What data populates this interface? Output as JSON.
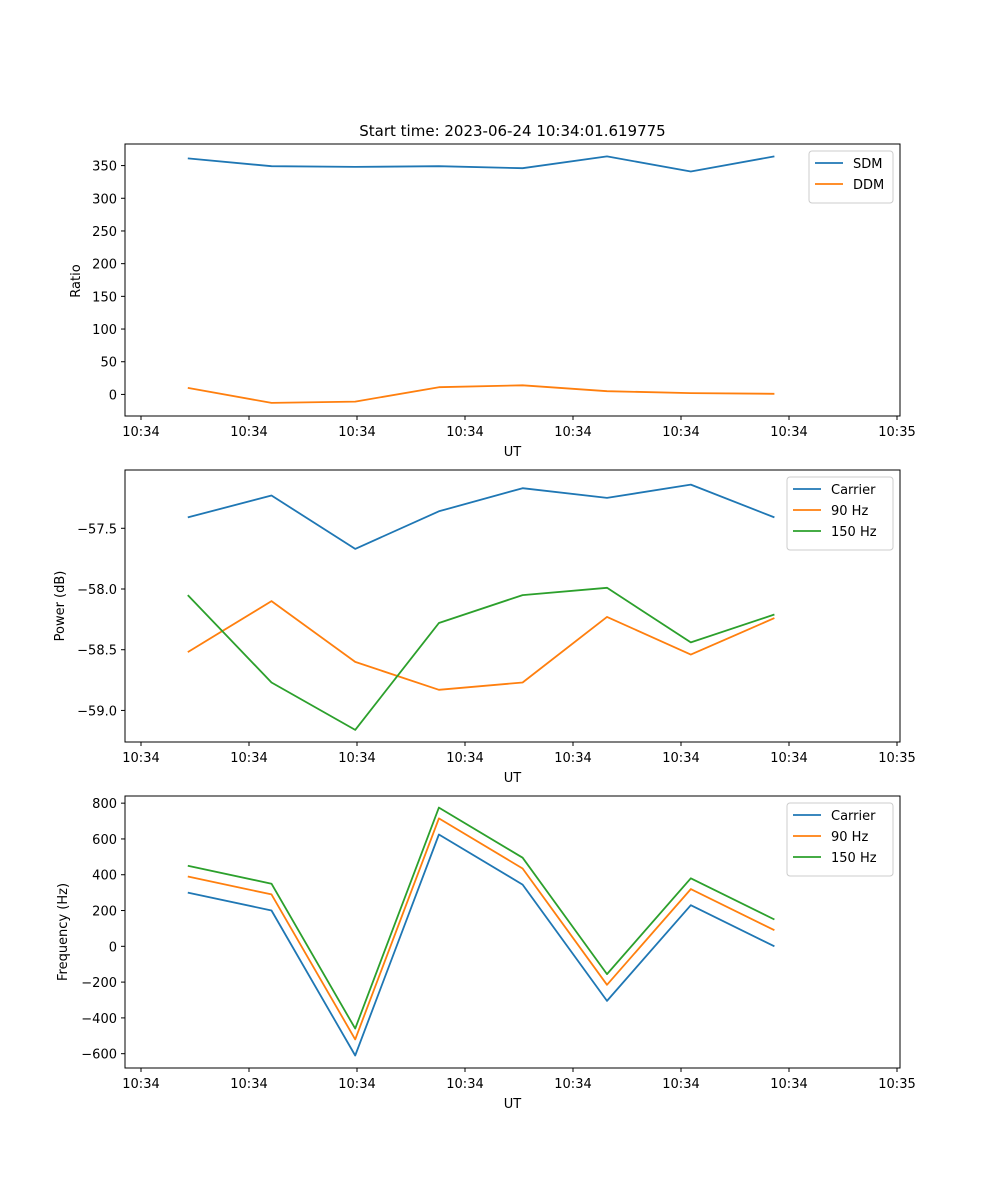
{
  "chart_data": [
    {
      "type": "line",
      "title": "Start time: 2023-06-24 10:34:01.619775",
      "xlabel": "UT",
      "ylabel": "Ratio",
      "x_tick_labels": [
        "10:34",
        "10:34",
        "10:34",
        "10:34",
        "10:34",
        "10:34",
        "10:34",
        "10:35"
      ],
      "y_ticks": [
        0,
        50,
        100,
        150,
        200,
        250,
        300,
        350
      ],
      "ylim": [
        -33,
        383
      ],
      "x_domain": [
        0,
        1
      ],
      "x": [
        0.081,
        0.189,
        0.297,
        0.405,
        0.513,
        0.622,
        0.73,
        0.838
      ],
      "series": [
        {
          "name": "SDM",
          "color": "#1f77b4",
          "values": [
            361,
            349,
            348,
            349,
            346,
            364,
            341,
            364
          ]
        },
        {
          "name": "DDM",
          "color": "#ff7f0e",
          "values": [
            10,
            -13,
            -11,
            11,
            14,
            5,
            2,
            1
          ]
        }
      ],
      "legend": "top-right",
      "grid": false
    },
    {
      "type": "line",
      "title": "",
      "xlabel": "UT",
      "ylabel": "Power (dB)",
      "x_tick_labels": [
        "10:34",
        "10:34",
        "10:34",
        "10:34",
        "10:34",
        "10:34",
        "10:34",
        "10:35"
      ],
      "y_ticks": [
        -59.0,
        -58.5,
        -58.0,
        -57.5
      ],
      "y_tick_labels": [
        "−59.0",
        "−58.5",
        "−58.0",
        "−57.5"
      ],
      "ylim": [
        -59.26,
        -57.02
      ],
      "x_domain": [
        0,
        1
      ],
      "x": [
        0.081,
        0.189,
        0.297,
        0.405,
        0.513,
        0.622,
        0.73,
        0.838
      ],
      "series": [
        {
          "name": "Carrier",
          "color": "#1f77b4",
          "values": [
            -57.41,
            -57.23,
            -57.67,
            -57.36,
            -57.17,
            -57.25,
            -57.14,
            -57.41
          ]
        },
        {
          "name": "90 Hz",
          "color": "#ff7f0e",
          "values": [
            -58.52,
            -58.1,
            -58.6,
            -58.83,
            -58.77,
            -58.23,
            -58.54,
            -58.24
          ]
        },
        {
          "name": "150 Hz",
          "color": "#2ca02c",
          "values": [
            -58.05,
            -58.77,
            -59.16,
            -58.28,
            -58.05,
            -57.99,
            -58.44,
            -58.21
          ]
        }
      ],
      "legend": "top-right",
      "grid": false
    },
    {
      "type": "line",
      "title": "",
      "xlabel": "UT",
      "ylabel": "Frequency (Hz)",
      "x_tick_labels": [
        "10:34",
        "10:34",
        "10:34",
        "10:34",
        "10:34",
        "10:34",
        "10:34",
        "10:35"
      ],
      "y_ticks": [
        -600,
        -400,
        -200,
        0,
        200,
        400,
        600,
        800
      ],
      "y_tick_labels": [
        "−600",
        "−400",
        "−200",
        "0",
        "200",
        "400",
        "600",
        "800"
      ],
      "ylim": [
        -680,
        840
      ],
      "x_domain": [
        0,
        1
      ],
      "x": [
        0.081,
        0.189,
        0.297,
        0.405,
        0.513,
        0.622,
        0.73,
        0.838
      ],
      "series": [
        {
          "name": "Carrier",
          "color": "#1f77b4",
          "values": [
            300,
            200,
            -610,
            625,
            345,
            -305,
            230,
            0
          ]
        },
        {
          "name": "90 Hz",
          "color": "#ff7f0e",
          "values": [
            390,
            290,
            -520,
            715,
            435,
            -215,
            320,
            90
          ]
        },
        {
          "name": "150 Hz",
          "color": "#2ca02c",
          "values": [
            450,
            350,
            -460,
            775,
            495,
            -155,
            380,
            150
          ]
        }
      ],
      "legend": "top-right",
      "grid": false
    }
  ]
}
